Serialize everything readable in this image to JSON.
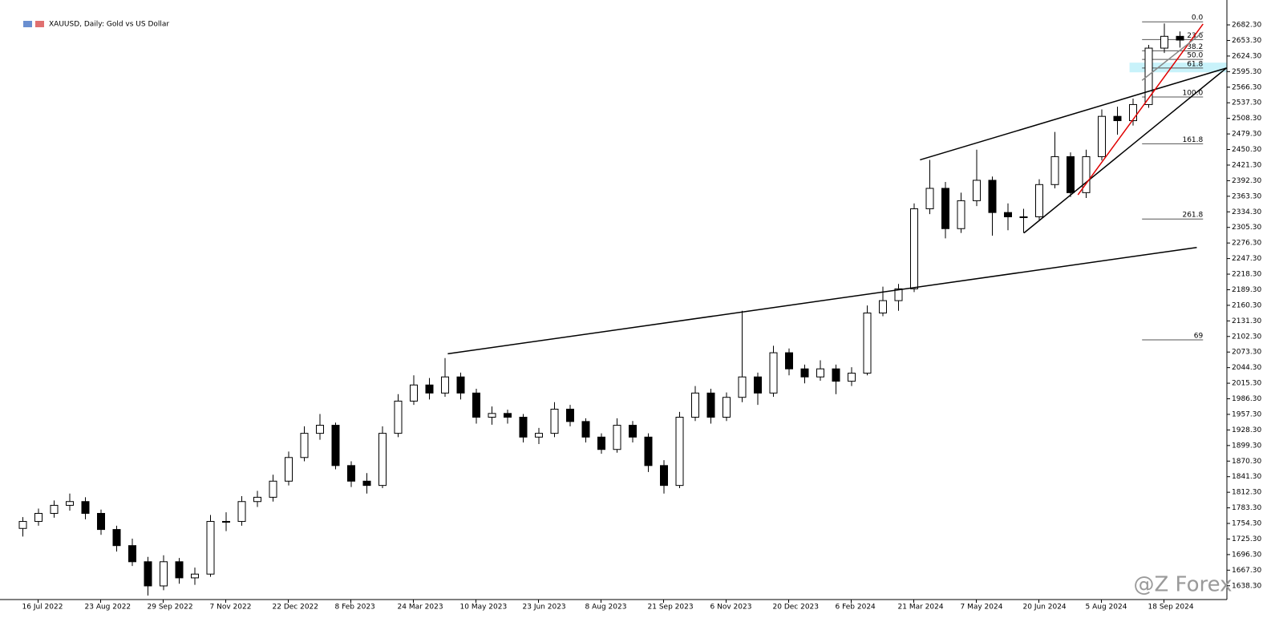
{
  "chart_data": {
    "type": "candlestick",
    "title": "XAUUSD, Daily:  Gold vs US Dollar",
    "watermark": "@Z Forex",
    "up_color": "#ffffff",
    "down_color": "#000000",
    "categories": [
      null,
      "16 Jul 2022",
      null,
      null,
      null,
      "23 Aug 2022",
      null,
      null,
      null,
      "29 Sep 2022",
      null,
      null,
      null,
      "7 Nov 2022",
      null,
      null,
      null,
      "22 Dec 2022",
      null,
      null,
      null,
      "8 Feb 2023",
      null,
      null,
      null,
      "24 Mar 2023",
      null,
      null,
      null,
      "10 May 2023",
      null,
      null,
      null,
      "23 Jun 2023",
      null,
      null,
      null,
      "8 Aug 2023",
      null,
      null,
      null,
      "21 Sep 2023",
      null,
      null,
      null,
      "6 Nov 2023",
      null,
      null,
      null,
      "20 Dec 2023",
      null,
      null,
      null,
      "6 Feb 2024",
      null,
      null,
      null,
      "21 Mar 2024",
      null,
      null,
      null,
      "7 May 2024",
      null,
      null,
      null,
      "20 Jun 2024",
      null,
      null,
      null,
      "5 Aug 2024",
      null,
      null,
      null,
      "18 Sep 2024",
      null
    ],
    "open": [
      1745,
      1758,
      1773,
      1788,
      1795,
      1773,
      1743,
      1713,
      1683,
      1638,
      1683,
      1653,
      1660,
      1758,
      1758,
      1795,
      1803,
      1833,
      1877,
      1922,
      1937,
      1862,
      1833,
      1825,
      1922,
      1982,
      2012,
      1997,
      2027,
      1997,
      1952,
      1959,
      1952,
      1915,
      1922,
      1967,
      1944,
      1915,
      1892,
      1937,
      1915,
      1862,
      1825,
      1952,
      1997,
      1952,
      1989,
      2027,
      1997,
      2072,
      2042,
      2027,
      2042,
      2019,
      2034,
      2146,
      2169,
      2191,
      2340,
      2378,
      2303,
      2355,
      2393,
      2333,
      2325,
      2325,
      2385,
      2437,
      2370,
      2437,
      2512,
      2504,
      2534,
      2639,
      2661
    ],
    "high": [
      1766,
      1782,
      1797,
      1810,
      1803,
      1780,
      1750,
      1726,
      1692,
      1695,
      1690,
      1672,
      1770,
      1775,
      1805,
      1815,
      1845,
      1888,
      1935,
      1958,
      1942,
      1870,
      1848,
      1935,
      1995,
      2030,
      2025,
      2062,
      2035,
      2005,
      1972,
      1966,
      1958,
      1932,
      1980,
      1975,
      1950,
      1922,
      1950,
      1945,
      1922,
      1872,
      1962,
      2010,
      2005,
      1998,
      2150,
      2035,
      2085,
      2080,
      2050,
      2058,
      2050,
      2045,
      2160,
      2195,
      2200,
      2350,
      2431,
      2390,
      2370,
      2450,
      2400,
      2350,
      2340,
      2395,
      2483,
      2445,
      2450,
      2525,
      2530,
      2545,
      2645,
      2685,
      2670
    ],
    "low": [
      1730,
      1750,
      1765,
      1778,
      1762,
      1733,
      1702,
      1675,
      1620,
      1630,
      1642,
      1640,
      1655,
      1740,
      1750,
      1785,
      1795,
      1825,
      1870,
      1910,
      1855,
      1822,
      1810,
      1820,
      1915,
      1975,
      1985,
      1990,
      1985,
      1940,
      1938,
      1940,
      1905,
      1902,
      1915,
      1935,
      1905,
      1884,
      1886,
      1905,
      1850,
      1810,
      1820,
      1945,
      1940,
      1945,
      1980,
      1975,
      1990,
      2030,
      2015,
      2020,
      1995,
      2010,
      2030,
      2140,
      2150,
      2185,
      2330,
      2285,
      2295,
      2345,
      2290,
      2300,
      2295,
      2318,
      2378,
      2362,
      2360,
      2430,
      2478,
      2495,
      2528,
      2630,
      2640
    ],
    "close": [
      1758,
      1773,
      1788,
      1795,
      1773,
      1743,
      1713,
      1683,
      1638,
      1683,
      1653,
      1660,
      1758,
      1758,
      1795,
      1803,
      1833,
      1877,
      1922,
      1937,
      1862,
      1833,
      1825,
      1922,
      1982,
      2012,
      1997,
      2027,
      1997,
      1952,
      1959,
      1952,
      1915,
      1922,
      1967,
      1944,
      1915,
      1892,
      1937,
      1915,
      1862,
      1825,
      1952,
      1997,
      1952,
      1989,
      2027,
      1997,
      2072,
      2042,
      2027,
      2042,
      2019,
      2034,
      2146,
      2169,
      2191,
      2340,
      2378,
      2303,
      2355,
      2393,
      2333,
      2325,
      2325,
      2385,
      2437,
      2370,
      2437,
      2512,
      2504,
      2534,
      2639,
      2661,
      2654
    ],
    "ylim": [
      1612.6,
      2728.6
    ],
    "yticks": [
      {
        "value": 1638.3,
        "label": "1638.30"
      },
      {
        "value": 1667.3,
        "label": "1667.30"
      },
      {
        "value": 1696.3,
        "label": "1696.30"
      },
      {
        "value": 1725.3,
        "label": "1725.30"
      },
      {
        "value": 1754.3,
        "label": "1754.30"
      },
      {
        "value": 1783.3,
        "label": "1783.30"
      },
      {
        "value": 1812.3,
        "label": "1812.30"
      },
      {
        "value": 1841.3,
        "label": "1841.30"
      },
      {
        "value": 1870.3,
        "label": "1870.30"
      },
      {
        "value": 1899.3,
        "label": "1899.30"
      },
      {
        "value": 1928.3,
        "label": "1928.30"
      },
      {
        "value": 1957.3,
        "label": "1957.30"
      },
      {
        "value": 1986.3,
        "label": "1986.30"
      },
      {
        "value": 2015.3,
        "label": "2015.30"
      },
      {
        "value": 2044.3,
        "label": "2044.30"
      },
      {
        "value": 2073.3,
        "label": "2073.30"
      },
      {
        "value": 2102.3,
        "label": "2102.30"
      },
      {
        "value": 2131.3,
        "label": "2131.30"
      },
      {
        "value": 2160.3,
        "label": "2160.30"
      },
      {
        "value": 2189.3,
        "label": "2189.30"
      },
      {
        "value": 2218.3,
        "label": "2218.30"
      },
      {
        "value": 2247.3,
        "label": "2247.30"
      },
      {
        "value": 2276.3,
        "label": "2276.30"
      },
      {
        "value": 2305.3,
        "label": "2305.30"
      },
      {
        "value": 2334.3,
        "label": "2334.30"
      },
      {
        "value": 2363.3,
        "label": "2363.30"
      },
      {
        "value": 2392.3,
        "label": "2392.30"
      },
      {
        "value": 2421.3,
        "label": "2421.30"
      },
      {
        "value": 2450.3,
        "label": "2450.30"
      },
      {
        "value": 2479.3,
        "label": "2479.30"
      },
      {
        "value": 2508.3,
        "label": "2508.30"
      },
      {
        "value": 2537.3,
        "label": "2537.30"
      },
      {
        "value": 2566.3,
        "label": "2566.30"
      },
      {
        "value": 2595.3,
        "label": "2595.30"
      },
      {
        "value": 2624.3,
        "label": "2624.30"
      },
      {
        "value": 2653.3,
        "label": "2653.30"
      },
      {
        "value": 2682.3,
        "label": "2682.30"
      }
    ],
    "grid": false,
    "trendlines": [
      {
        "from": [
          27.2,
          2070
        ],
        "to": [
          75.1,
          2268
        ],
        "color": "#000000"
      },
      {
        "from": [
          57.4,
          2431
        ],
        "to": [
          77.0,
          2602
        ],
        "color": "#000000"
      },
      {
        "from": [
          64.05,
          2295
        ],
        "to": [
          77.0,
          2602
        ],
        "color": "#000000"
      },
      {
        "from": [
          67.5,
          2366
        ],
        "to": [
          75.5,
          2684
        ],
        "color": "#e00000"
      },
      {
        "from": [
          71.6,
          2579
        ],
        "to": [
          75.5,
          2669
        ],
        "color": "#888888"
      }
    ],
    "zone": {
      "from": 70.8,
      "to": 77.0,
      "low": 2594,
      "high": 2612,
      "color": "#c8f2fa"
    },
    "fibonacci": {
      "from": 71.6,
      "to": 75.5,
      "color": "#555555",
      "levels": [
        {
          "label": "0.0",
          "price": 2688
        },
        {
          "label": "23.6",
          "price": 2655
        },
        {
          "label": "38.2",
          "price": 2634
        },
        {
          "label": "50.0",
          "price": 2618
        },
        {
          "label": "61.8",
          "price": 2602
        },
        {
          "label": "100.0",
          "price": 2548
        },
        {
          "label": "161.8",
          "price": 2461
        },
        {
          "label": "261.8",
          "price": 2321
        },
        {
          "label": "69",
          "price": 2096
        }
      ]
    }
  }
}
